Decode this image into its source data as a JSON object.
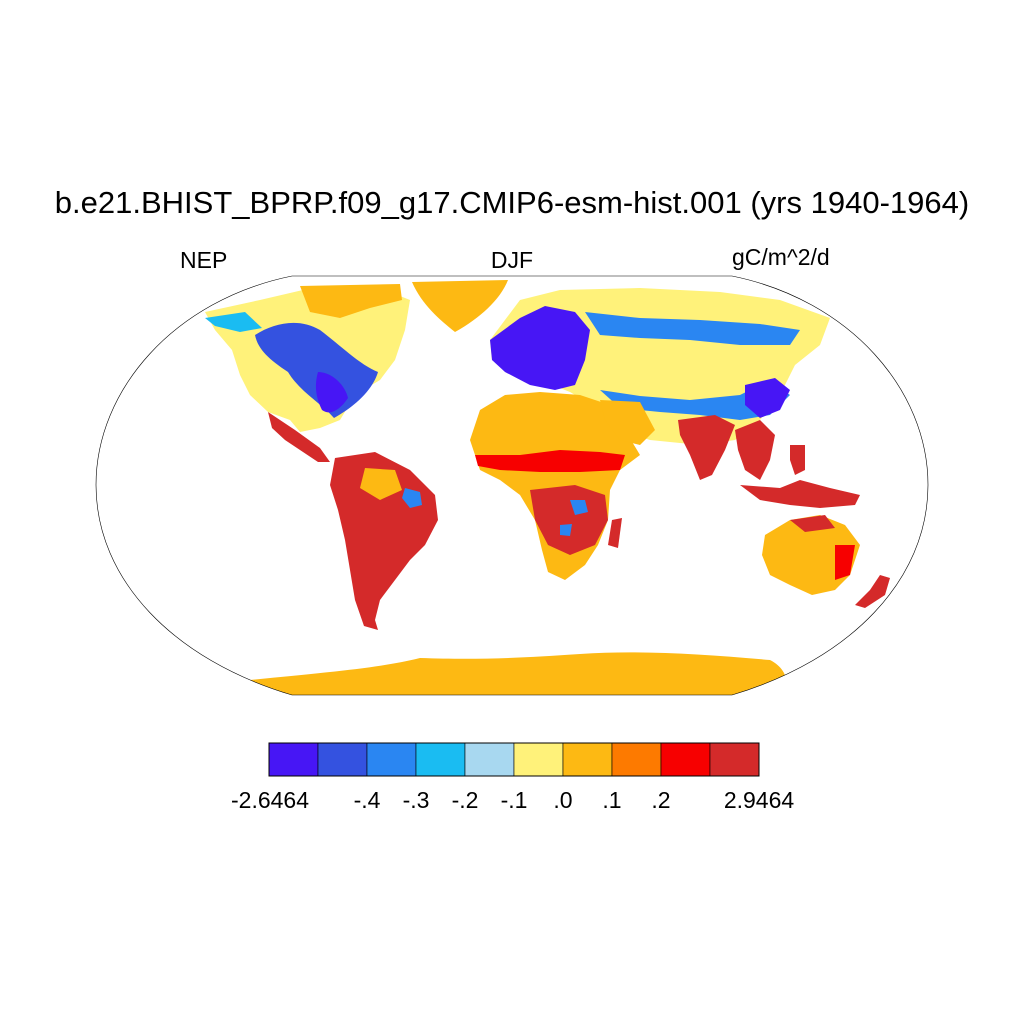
{
  "title": "b.e21.BHIST_BPRP.f09_g17.CMIP6-esm-hist.001 (yrs 1940-1964)",
  "variable": "NEP",
  "season": "DJF",
  "units": "gC/m^2/d",
  "colorbar": {
    "colors": [
      "#4716f5",
      "#3452e0",
      "#2a86f2",
      "#1abcf2",
      "#a8d8f0",
      "#fff27a",
      "#fdb913",
      "#fd7a00",
      "#f70000",
      "#d42a2a"
    ],
    "labels": [
      "-2.6464",
      "-.4",
      "-.3",
      "-.2",
      "-.1",
      ".0",
      ".1",
      ".2",
      "2.9464"
    ]
  }
}
